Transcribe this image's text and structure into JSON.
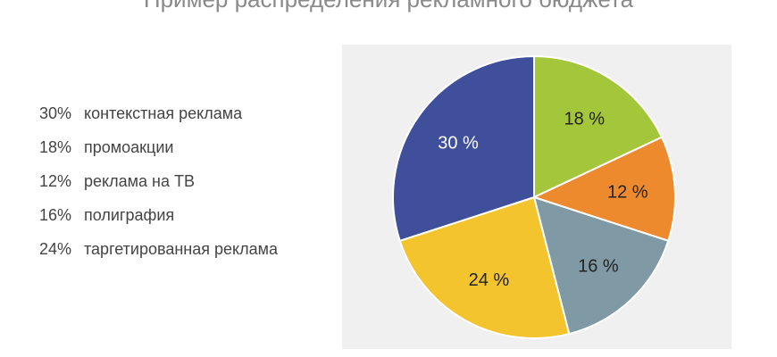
{
  "title": "Пример распределения рекламного бюджета",
  "legend": [
    {
      "pct": "30%",
      "label": "контекстная реклама"
    },
    {
      "pct": "18%",
      "label": "промоакции"
    },
    {
      "pct": "12%",
      "label": "реклама на ТВ"
    },
    {
      "pct": "16%",
      "label": "полиграфия"
    },
    {
      "pct": "24%",
      "label": "таргетированная реклама"
    }
  ],
  "chart_data": {
    "type": "pie",
    "start": "12 o'clock",
    "direction": "clockwise",
    "slices": [
      {
        "name": "промоакции",
        "value": 18,
        "label": "18 %",
        "color": "#a4c63a",
        "label_color": "#222222"
      },
      {
        "name": "реклама на ТВ",
        "value": 12,
        "label": "12 %",
        "color": "#ee8a2e",
        "label_color": "#222222"
      },
      {
        "name": "полиграфия",
        "value": 16,
        "label": "16 %",
        "color": "#7f9aa5",
        "label_color": "#222222"
      },
      {
        "name": "таргетированная реклама",
        "value": 24,
        "label": "24 %",
        "color": "#f3c42e",
        "label_color": "#222222"
      },
      {
        "name": "контекстная реклама",
        "value": 30,
        "label": "30 %",
        "color": "#404f9c",
        "label_color": "#ffffff"
      }
    ]
  }
}
